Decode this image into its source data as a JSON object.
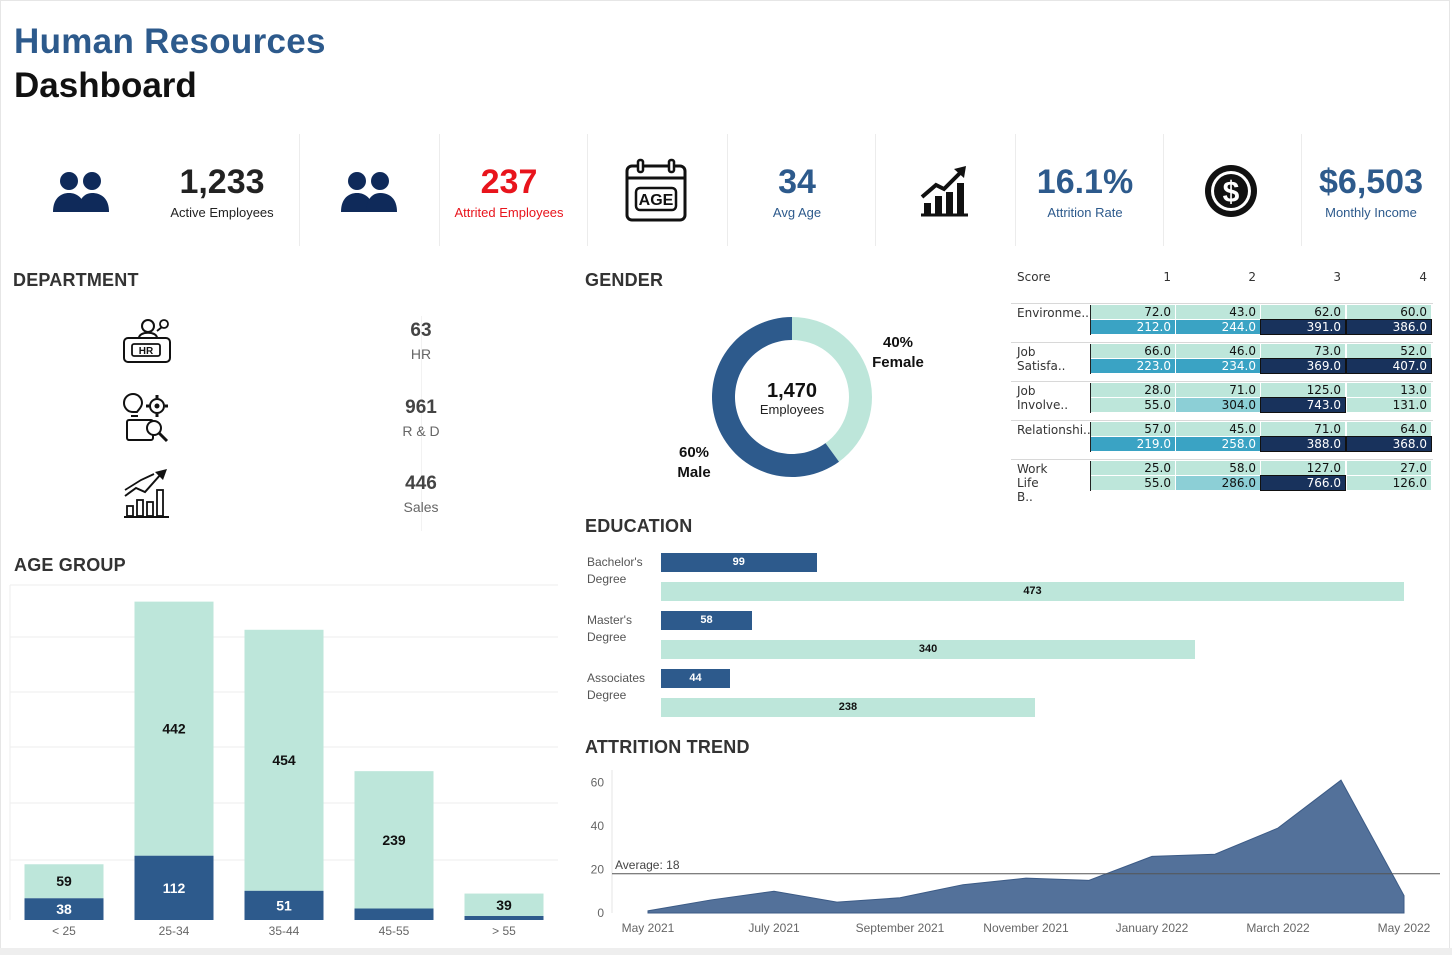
{
  "header": {
    "title_line1": "Human Resources",
    "title_line2": "Dashboard"
  },
  "kpis": [
    {
      "value": "1,233",
      "label": "Active Employees",
      "color": "#111111",
      "icon": "people-icon"
    },
    {
      "value": "237",
      "label": "Attrited Employees",
      "color": "#e8141c",
      "icon": "people-icon"
    },
    {
      "value": "34",
      "label": "Avg Age",
      "color": "#2d5a8c",
      "icon": "age-calendar-icon",
      "icon_text": "AGE"
    },
    {
      "value": "16.1%",
      "label": "Attrition Rate",
      "color": "#2d5a8c",
      "icon": "growth-chart-icon"
    },
    {
      "value": "$6,503",
      "label": "Monthly Income",
      "color": "#2d5a8c",
      "icon": "dollar-coin-icon"
    }
  ],
  "department": {
    "title": "DEPARTMENT",
    "items": [
      {
        "value": "63",
        "label": "HR",
        "icon": "hr-desk-icon",
        "icon_text": "HR"
      },
      {
        "value": "961",
        "label": "R & D",
        "icon": "research-gears-icon"
      },
      {
        "value": "446",
        "label": "Sales",
        "icon": "sales-growth-icon"
      }
    ]
  },
  "colors": {
    "dark_blue": "#2d5a8c",
    "mint": "#bde6da",
    "teal": "#3aa3c4",
    "light_teal": "#8ccfd6",
    "navy": "#18325c",
    "red": "#e8141c"
  },
  "chart_data": [
    {
      "type": "pie",
      "title": "GENDER",
      "center_value": "1,470",
      "center_label": "Employees",
      "slices": [
        {
          "name": "Female",
          "value": 40,
          "label": "40%"
        },
        {
          "name": "Male",
          "value": 60,
          "label": "60%"
        }
      ]
    },
    {
      "type": "heatmap",
      "corner_label": "Score",
      "columns": [
        "1",
        "2",
        "3",
        "4"
      ],
      "rows": [
        {
          "label": "Environme..",
          "top": [
            "72.0",
            "43.0",
            "62.0",
            "60.0"
          ],
          "bottom": [
            "212.0",
            "244.0",
            "391.0",
            "386.0"
          ]
        },
        {
          "label": "Job Satisfa..",
          "top": [
            "66.0",
            "46.0",
            "73.0",
            "52.0"
          ],
          "bottom": [
            "223.0",
            "234.0",
            "369.0",
            "407.0"
          ]
        },
        {
          "label": "Job Involve..",
          "top": [
            "28.0",
            "71.0",
            "125.0",
            "13.0"
          ],
          "bottom": [
            "55.0",
            "304.0",
            "743.0",
            "131.0"
          ]
        },
        {
          "label": "Relationshi..",
          "top": [
            "57.0",
            "45.0",
            "71.0",
            "64.0"
          ],
          "bottom": [
            "219.0",
            "258.0",
            "388.0",
            "368.0"
          ]
        },
        {
          "label": "Work Life B..",
          "top": [
            "25.0",
            "58.0",
            "127.0",
            "27.0"
          ],
          "bottom": [
            "55.0",
            "286.0",
            "766.0",
            "126.0"
          ]
        }
      ]
    },
    {
      "type": "bar",
      "title": "EDUCATION",
      "categories": [
        "Bachelor's Degree",
        "Master's Degree",
        "Associates Degree"
      ],
      "series": [
        {
          "values": [
            99,
            58,
            44
          ]
        },
        {
          "values": [
            473,
            340,
            238
          ]
        }
      ],
      "xlim": [
        0,
        500
      ]
    },
    {
      "type": "bar",
      "title": "AGE GROUP",
      "categories": [
        "< 25",
        "25-34",
        "35-44",
        "45-55",
        "> 55"
      ],
      "series": [
        {
          "values": [
            38,
            112,
            51,
            20,
            7
          ],
          "labels": [
            "38",
            "112",
            "51",
            "",
            ""
          ]
        },
        {
          "values": [
            59,
            442,
            454,
            239,
            39
          ],
          "labels": [
            "59",
            "442",
            "454",
            "239",
            "39"
          ]
        }
      ],
      "stacked": true,
      "ylim": [
        0,
        560
      ]
    },
    {
      "type": "area",
      "title": "ATTRITION TREND",
      "x": [
        "May 2021",
        "Jun 2021",
        "Jul 2021",
        "Aug 2021",
        "Sep 2021",
        "Oct 2021",
        "Nov 2021",
        "Dec 2021",
        "Jan 2022",
        "Feb 2022",
        "Mar 2022",
        "Apr 2022",
        "May 2022"
      ],
      "x_tick_labels": [
        "May 2021",
        "July 2021",
        "September 2021",
        "November 2021",
        "January 2022",
        "March 2022",
        "May 2022"
      ],
      "y": [
        1,
        6,
        10,
        5,
        7,
        13,
        16,
        15,
        26,
        27,
        39,
        61,
        8
      ],
      "ylim": [
        0,
        62
      ],
      "y_ticks": [
        "0",
        "20",
        "40",
        "60"
      ],
      "average": 18,
      "average_label": "Average: 18"
    }
  ]
}
